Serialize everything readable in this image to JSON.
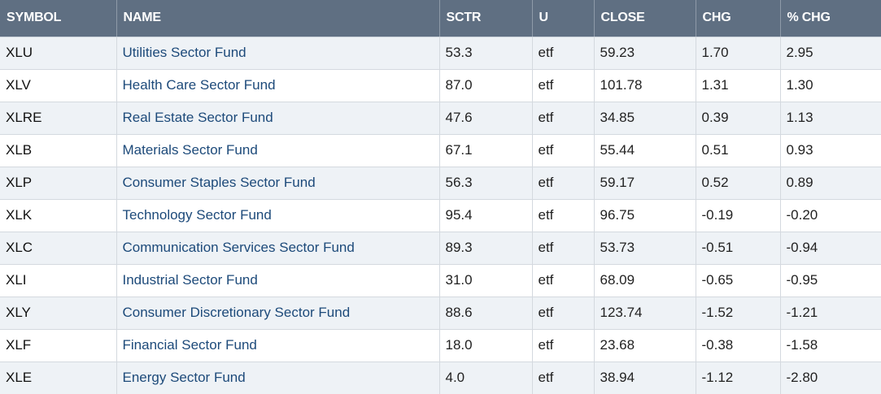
{
  "headers": {
    "symbol": "SYMBOL",
    "name": "NAME",
    "sctr": "SCTR",
    "u": "U",
    "close": "CLOSE",
    "chg": "CHG",
    "pct_chg": "% CHG"
  },
  "rows": [
    {
      "symbol": "XLU",
      "name": "Utilities Sector Fund",
      "sctr": "53.3",
      "u": "etf",
      "close": "59.23",
      "chg": "1.70",
      "pct_chg": "2.95"
    },
    {
      "symbol": "XLV",
      "name": "Health Care Sector Fund",
      "sctr": "87.0",
      "u": "etf",
      "close": "101.78",
      "chg": "1.31",
      "pct_chg": "1.30"
    },
    {
      "symbol": "XLRE",
      "name": "Real Estate Sector Fund",
      "sctr": "47.6",
      "u": "etf",
      "close": "34.85",
      "chg": "0.39",
      "pct_chg": "1.13"
    },
    {
      "symbol": "XLB",
      "name": "Materials Sector Fund",
      "sctr": "67.1",
      "u": "etf",
      "close": "55.44",
      "chg": "0.51",
      "pct_chg": "0.93"
    },
    {
      "symbol": "XLP",
      "name": "Consumer Staples Sector Fund",
      "sctr": "56.3",
      "u": "etf",
      "close": "59.17",
      "chg": "0.52",
      "pct_chg": "0.89"
    },
    {
      "symbol": "XLK",
      "name": "Technology Sector Fund",
      "sctr": "95.4",
      "u": "etf",
      "close": "96.75",
      "chg": "-0.19",
      "pct_chg": "-0.20"
    },
    {
      "symbol": "XLC",
      "name": "Communication Services Sector Fund",
      "sctr": "89.3",
      "u": "etf",
      "close": "53.73",
      "chg": "-0.51",
      "pct_chg": "-0.94"
    },
    {
      "symbol": "XLI",
      "name": "Industrial Sector Fund",
      "sctr": "31.0",
      "u": "etf",
      "close": "68.09",
      "chg": "-0.65",
      "pct_chg": "-0.95"
    },
    {
      "symbol": "XLY",
      "name": "Consumer Discretionary Sector Fund",
      "sctr": "88.6",
      "u": "etf",
      "close": "123.74",
      "chg": "-1.52",
      "pct_chg": "-1.21"
    },
    {
      "symbol": "XLF",
      "name": "Financial Sector Fund",
      "sctr": "18.0",
      "u": "etf",
      "close": "23.68",
      "chg": "-0.38",
      "pct_chg": "-1.58"
    },
    {
      "symbol": "XLE",
      "name": "Energy Sector Fund",
      "sctr": "4.0",
      "u": "etf",
      "close": "38.94",
      "chg": "-1.12",
      "pct_chg": "-2.80"
    }
  ],
  "colors": {
    "header_bg": "#5f6f82",
    "header_text": "#ffffff",
    "link": "#1d4a7a",
    "row_alt": "#eef2f6"
  }
}
